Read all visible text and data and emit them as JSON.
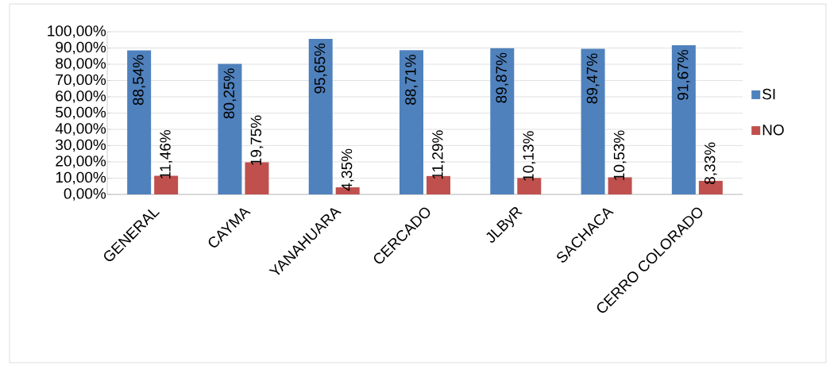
{
  "chart_data": {
    "type": "bar",
    "categories": [
      "GENERAL",
      "CAYMA",
      "YANAHUARA",
      "CERCADO",
      "JLByR",
      "SACHACA",
      "CERRO COLORADO"
    ],
    "series": [
      {
        "name": "SI",
        "color": "#4f81bd",
        "values": [
          88.54,
          80.25,
          95.65,
          88.71,
          89.87,
          89.47,
          91.67
        ],
        "value_labels": [
          "88,54%",
          "80,25%",
          "95,65%",
          "88,71%",
          "89,87%",
          "89,47%",
          "91,67%"
        ]
      },
      {
        "name": "NO",
        "color": "#c0504d",
        "values": [
          11.46,
          19.75,
          4.35,
          11.29,
          10.13,
          10.53,
          8.33
        ],
        "value_labels": [
          "11,46%",
          "19,75%",
          "4,35%",
          "11,29%",
          "10,13%",
          "10,53%",
          "8,33%"
        ]
      }
    ],
    "ylim": [
      0,
      100
    ],
    "yticks": [
      {
        "value": 0,
        "label": "0,00%"
      },
      {
        "value": 10,
        "label": "10,00%"
      },
      {
        "value": 20,
        "label": "20,00%"
      },
      {
        "value": 30,
        "label": "30,00%"
      },
      {
        "value": 40,
        "label": "40,00%"
      },
      {
        "value": 50,
        "label": "50,00%"
      },
      {
        "value": 60,
        "label": "60,00%"
      },
      {
        "value": 70,
        "label": "70,00%"
      },
      {
        "value": 80,
        "label": "80,00%"
      },
      {
        "value": 90,
        "label": "90,00%"
      },
      {
        "value": 100,
        "label": "100,00%"
      }
    ],
    "grid": "y",
    "legend": "right"
  }
}
